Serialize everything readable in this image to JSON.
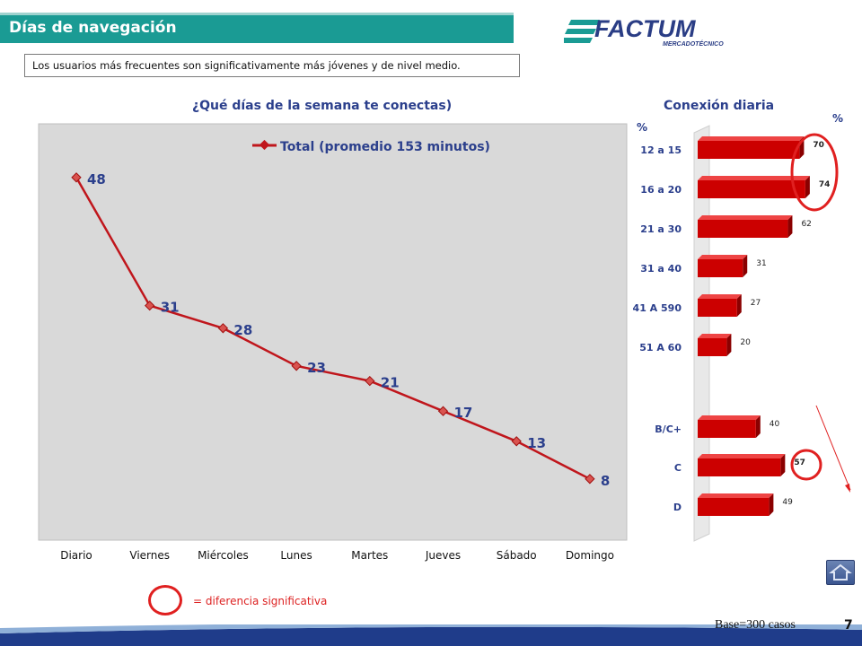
{
  "header": {
    "title": "Días de navegación"
  },
  "logo": {
    "text": "FACTUM",
    "subtext": "MERCADOTÉCNICO"
  },
  "subtitle": "Los usuarios más frecuentes son significativamente más jóvenes y de nivel medio.",
  "footer": {
    "base": "Base=300 casos",
    "page": "7"
  },
  "legend_note": "= diferencia significativa",
  "colors": {
    "teal": "#1a9b94",
    "line": "#c0161c",
    "bar": "#cc0000",
    "title_blue": "#2b3f8c",
    "highlight": "#e02020"
  },
  "chart_data": [
    {
      "type": "line",
      "title": "¿Qué días de la semana te conectas)",
      "categories": [
        "Diario",
        "Viernes",
        "Miércoles",
        "Lunes",
        "Martes",
        "Jueves",
        "Sábado",
        "Domingo"
      ],
      "series": [
        {
          "name": "Total (promedio 153 minutos)",
          "values": [
            48,
            31,
            28,
            23,
            21,
            17,
            13,
            8
          ]
        }
      ],
      "ylim": [
        0,
        55
      ],
      "legend": "top"
    },
    {
      "type": "bar",
      "orientation": "horizontal",
      "title": "Conexión diaria",
      "unit_left": "%",
      "unit_right": "%",
      "categories": [
        "12 a 15",
        "16 a 20",
        "21 a 30",
        "31 a 40",
        "41 A 590",
        "51 A 60",
        "B/C+",
        "C",
        "D"
      ],
      "values": [
        70,
        74,
        62,
        31,
        27,
        20,
        40,
        57,
        49
      ],
      "highlighted": [
        "12 a 15",
        "16 a 20",
        "C"
      ],
      "xlim": [
        0,
        100
      ]
    }
  ]
}
